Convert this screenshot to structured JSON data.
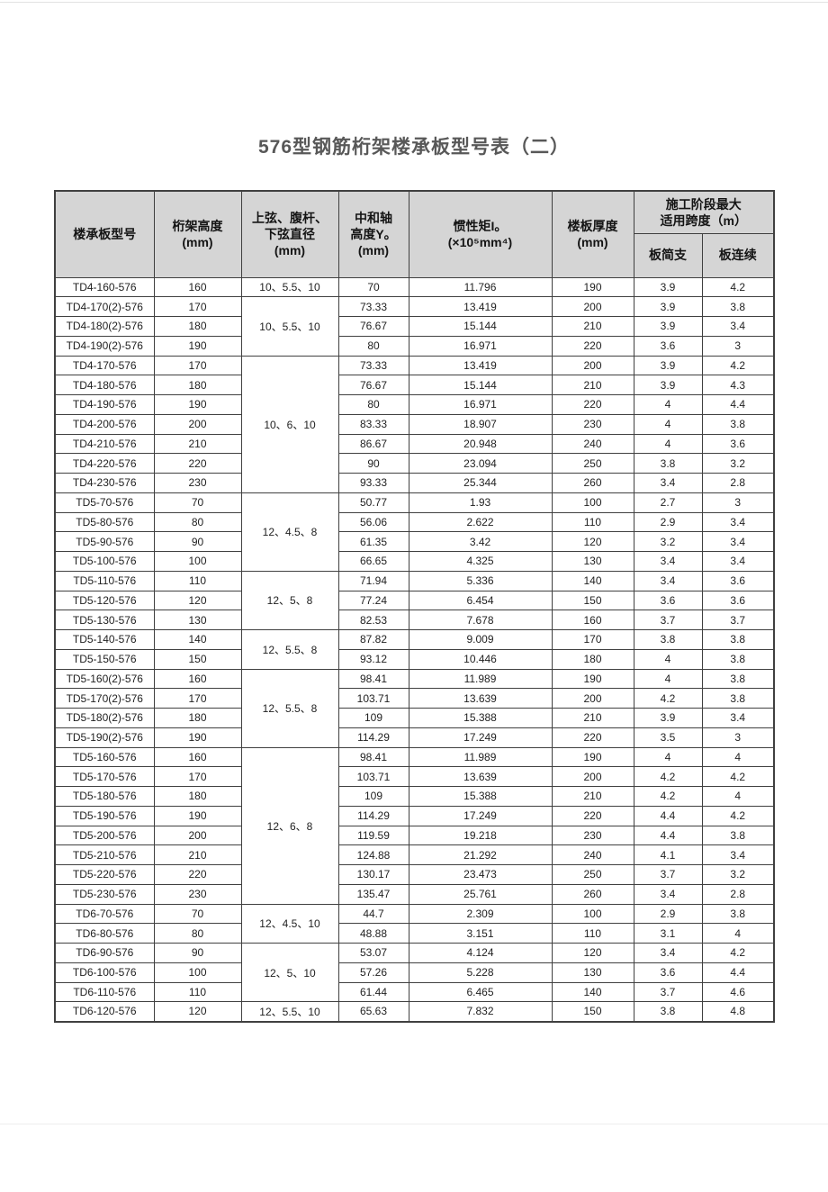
{
  "page": {
    "title": "576型钢筋桁架楼承板型号表（二）"
  },
  "table": {
    "header": {
      "model": "楼承板型号",
      "truss_height_l1": "桁架高度",
      "truss_height_l2": "(mm)",
      "diameter_l1": "上弦、腹杆、",
      "diameter_l2": "下弦直径",
      "diameter_l3": "(mm)",
      "neutral_l1": "中和轴",
      "neutral_l2": "高度Y。",
      "neutral_l3": "(mm)",
      "inertia_l1": "惯性矩I。",
      "inertia_l2": "(×10⁵mm⁴)",
      "slab_l1": "楼板厚度",
      "slab_l2": "(mm)",
      "span_group_l1": "施工阶段最大",
      "span_group_l2": "适用跨度（m）",
      "span_simple": "板简支",
      "span_continuous": "板连续"
    },
    "row_columns": [
      "model",
      "truss_height_mm",
      "neutral_axis_height_mm",
      "inertia_moment_x10e5mm4",
      "slab_thickness_mm",
      "span_simple_m",
      "span_continuous_m"
    ],
    "rows": [
      [
        "TD4-160-576",
        "160",
        "70",
        "11.796",
        "190",
        "3.9",
        "4.2"
      ],
      [
        "TD4-170(2)-576",
        "170",
        "73.33",
        "13.419",
        "200",
        "3.9",
        "3.8"
      ],
      [
        "TD4-180(2)-576",
        "180",
        "76.67",
        "15.144",
        "210",
        "3.9",
        "3.4"
      ],
      [
        "TD4-190(2)-576",
        "190",
        "80",
        "16.971",
        "220",
        "3.6",
        "3"
      ],
      [
        "TD4-170-576",
        "170",
        "73.33",
        "13.419",
        "200",
        "3.9",
        "4.2"
      ],
      [
        "TD4-180-576",
        "180",
        "76.67",
        "15.144",
        "210",
        "3.9",
        "4.3"
      ],
      [
        "TD4-190-576",
        "190",
        "80",
        "16.971",
        "220",
        "4",
        "4.4"
      ],
      [
        "TD4-200-576",
        "200",
        "83.33",
        "18.907",
        "230",
        "4",
        "3.8"
      ],
      [
        "TD4-210-576",
        "210",
        "86.67",
        "20.948",
        "240",
        "4",
        "3.6"
      ],
      [
        "TD4-220-576",
        "220",
        "90",
        "23.094",
        "250",
        "3.8",
        "3.2"
      ],
      [
        "TD4-230-576",
        "230",
        "93.33",
        "25.344",
        "260",
        "3.4",
        "2.8"
      ],
      [
        "TD5-70-576",
        "70",
        "50.77",
        "1.93",
        "100",
        "2.7",
        "3"
      ],
      [
        "TD5-80-576",
        "80",
        "56.06",
        "2.622",
        "110",
        "2.9",
        "3.4"
      ],
      [
        "TD5-90-576",
        "90",
        "61.35",
        "3.42",
        "120",
        "3.2",
        "3.4"
      ],
      [
        "TD5-100-576",
        "100",
        "66.65",
        "4.325",
        "130",
        "3.4",
        "3.4"
      ],
      [
        "TD5-110-576",
        "110",
        "71.94",
        "5.336",
        "140",
        "3.4",
        "3.6"
      ],
      [
        "TD5-120-576",
        "120",
        "77.24",
        "6.454",
        "150",
        "3.6",
        "3.6"
      ],
      [
        "TD5-130-576",
        "130",
        "82.53",
        "7.678",
        "160",
        "3.7",
        "3.7"
      ],
      [
        "TD5-140-576",
        "140",
        "87.82",
        "9.009",
        "170",
        "3.8",
        "3.8"
      ],
      [
        "TD5-150-576",
        "150",
        "93.12",
        "10.446",
        "180",
        "4",
        "3.8"
      ],
      [
        "TD5-160(2)-576",
        "160",
        "98.41",
        "11.989",
        "190",
        "4",
        "3.8"
      ],
      [
        "TD5-170(2)-576",
        "170",
        "103.71",
        "13.639",
        "200",
        "4.2",
        "3.8"
      ],
      [
        "TD5-180(2)-576",
        "180",
        "109",
        "15.388",
        "210",
        "3.9",
        "3.4"
      ],
      [
        "TD5-190(2)-576",
        "190",
        "114.29",
        "17.249",
        "220",
        "3.5",
        "3"
      ],
      [
        "TD5-160-576",
        "160",
        "98.41",
        "11.989",
        "190",
        "4",
        "4"
      ],
      [
        "TD5-170-576",
        "170",
        "103.71",
        "13.639",
        "200",
        "4.2",
        "4.2"
      ],
      [
        "TD5-180-576",
        "180",
        "109",
        "15.388",
        "210",
        "4.2",
        "4"
      ],
      [
        "TD5-190-576",
        "190",
        "114.29",
        "17.249",
        "220",
        "4.4",
        "4.2"
      ],
      [
        "TD5-200-576",
        "200",
        "119.59",
        "19.218",
        "230",
        "4.4",
        "3.8"
      ],
      [
        "TD5-210-576",
        "210",
        "124.88",
        "21.292",
        "240",
        "4.1",
        "3.4"
      ],
      [
        "TD5-220-576",
        "220",
        "130.17",
        "23.473",
        "250",
        "3.7",
        "3.2"
      ],
      [
        "TD5-230-576",
        "230",
        "135.47",
        "25.761",
        "260",
        "3.4",
        "2.8"
      ],
      [
        "TD6-70-576",
        "70",
        "44.7",
        "2.309",
        "100",
        "2.9",
        "3.8"
      ],
      [
        "TD6-80-576",
        "80",
        "48.88",
        "3.151",
        "110",
        "3.1",
        "4"
      ],
      [
        "TD6-90-576",
        "90",
        "53.07",
        "4.124",
        "120",
        "3.4",
        "4.2"
      ],
      [
        "TD6-100-576",
        "100",
        "57.26",
        "5.228",
        "130",
        "3.6",
        "4.4"
      ],
      [
        "TD6-110-576",
        "110",
        "61.44",
        "6.465",
        "140",
        "3.7",
        "4.6"
      ],
      [
        "TD6-120-576",
        "120",
        "65.63",
        "7.832",
        "150",
        "3.8",
        "4.8"
      ]
    ],
    "diameter_groups": [
      {
        "row": 0,
        "span": 1,
        "label": "10、5.5、10"
      },
      {
        "row": 1,
        "span": 3,
        "label": "10、5.5、10"
      },
      {
        "row": 4,
        "span": 7,
        "label": "10、6、10"
      },
      {
        "row": 11,
        "span": 4,
        "label": "12、4.5、8"
      },
      {
        "row": 15,
        "span": 3,
        "label": "12、5、8"
      },
      {
        "row": 18,
        "span": 2,
        "label": "12、5.5、8"
      },
      {
        "row": 20,
        "span": 4,
        "label": "12、5.5、8"
      },
      {
        "row": 24,
        "span": 8,
        "label": "12、6、8"
      },
      {
        "row": 32,
        "span": 2,
        "label": "12、4.5、10"
      },
      {
        "row": 34,
        "span": 3,
        "label": "12、5、10"
      },
      {
        "row": 37,
        "span": 1,
        "label": "12、5.5、10"
      }
    ],
    "colors": {
      "header_bg": "#d5d5d5",
      "border": "#404040",
      "title_text": "#585858",
      "cell_text": "#1f1f1f"
    }
  }
}
